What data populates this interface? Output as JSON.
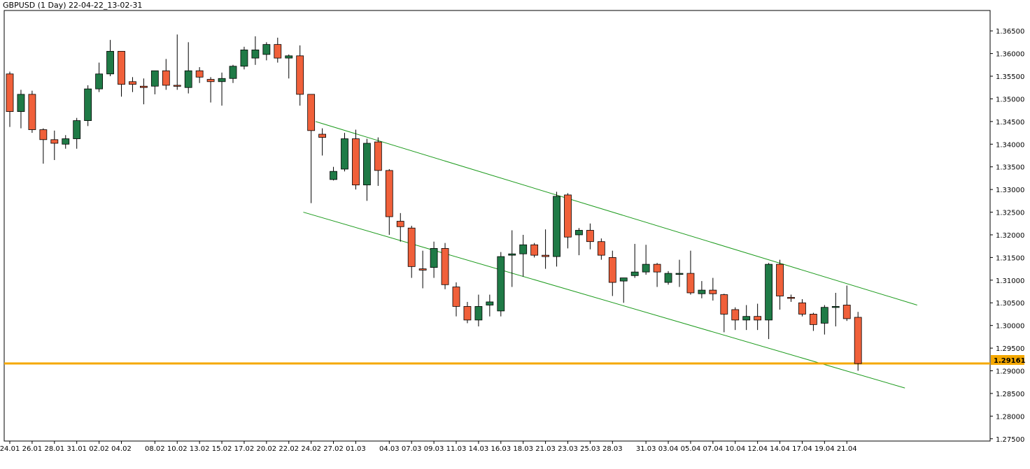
{
  "header": {
    "title": "GBPUSD (1 Day) 22-04-22_13-02-31"
  },
  "colors": {
    "bull": "#1f7a46",
    "bear": "#f0603a",
    "channel": "#1b9a1b",
    "level": "#f5a800",
    "grid": "#000000"
  },
  "chart_data": {
    "type": "candlestick",
    "title": "GBPUSD (1 Day) 22-04-22_13-02-31",
    "ylim": [
      1.2745,
      1.3695
    ],
    "y_ticks": [
      "1.36500",
      "1.36000",
      "1.35500",
      "1.35000",
      "1.34500",
      "1.34000",
      "1.33500",
      "1.33000",
      "1.32500",
      "1.32000",
      "1.31500",
      "1.31000",
      "1.30500",
      "1.30000",
      "1.29500",
      "1.29000",
      "1.28500",
      "1.28000",
      "1.27500"
    ],
    "x_ticks": [
      {
        "i": 0,
        "label": "24.01"
      },
      {
        "i": 2,
        "label": "26.01"
      },
      {
        "i": 4,
        "label": "28.01"
      },
      {
        "i": 6,
        "label": "31.01"
      },
      {
        "i": 8,
        "label": "02.02"
      },
      {
        "i": 10,
        "label": "04.02"
      },
      {
        "i": 13,
        "label": "08.02"
      },
      {
        "i": 15,
        "label": "10.02"
      },
      {
        "i": 17,
        "label": "13.02"
      },
      {
        "i": 19,
        "label": "15.02"
      },
      {
        "i": 21,
        "label": "17.02"
      },
      {
        "i": 23,
        "label": "20.02"
      },
      {
        "i": 25,
        "label": "22.02"
      },
      {
        "i": 27,
        "label": "24.02"
      },
      {
        "i": 29,
        "label": "27.02"
      },
      {
        "i": 31,
        "label": "01.03"
      },
      {
        "i": 34,
        "label": "04.03"
      },
      {
        "i": 36,
        "label": "07.03"
      },
      {
        "i": 38,
        "label": "09.03"
      },
      {
        "i": 40,
        "label": "11.03"
      },
      {
        "i": 42,
        "label": "14.03"
      },
      {
        "i": 44,
        "label": "16.03"
      },
      {
        "i": 46,
        "label": "18.03"
      },
      {
        "i": 48,
        "label": "21.03"
      },
      {
        "i": 50,
        "label": "23.03"
      },
      {
        "i": 52,
        "label": "25.03"
      },
      {
        "i": 54,
        "label": "28.03"
      },
      {
        "i": 57,
        "label": "31.03"
      },
      {
        "i": 59,
        "label": "03.04"
      },
      {
        "i": 61,
        "label": "05.04"
      },
      {
        "i": 63,
        "label": "07.04"
      },
      {
        "i": 65,
        "label": "10.04"
      },
      {
        "i": 67,
        "label": "12.04"
      },
      {
        "i": 69,
        "label": "14.04"
      },
      {
        "i": 71,
        "label": "17.04"
      },
      {
        "i": 73,
        "label": "19.04"
      },
      {
        "i": 75,
        "label": "21.04"
      }
    ],
    "candles": [
      {
        "o": 1.3555,
        "h": 1.356,
        "l": 1.3438,
        "c": 1.3472
      },
      {
        "o": 1.3472,
        "h": 1.352,
        "l": 1.3435,
        "c": 1.351
      },
      {
        "o": 1.351,
        "h": 1.3518,
        "l": 1.3425,
        "c": 1.3432
      },
      {
        "o": 1.3432,
        "h": 1.3435,
        "l": 1.3357,
        "c": 1.341
      },
      {
        "o": 1.341,
        "h": 1.343,
        "l": 1.3365,
        "c": 1.3402
      },
      {
        "o": 1.34,
        "h": 1.342,
        "l": 1.339,
        "c": 1.3412
      },
      {
        "o": 1.3412,
        "h": 1.3458,
        "l": 1.339,
        "c": 1.3452
      },
      {
        "o": 1.3452,
        "h": 1.353,
        "l": 1.344,
        "c": 1.3522
      },
      {
        "o": 1.3522,
        "h": 1.358,
        "l": 1.3515,
        "c": 1.3555
      },
      {
        "o": 1.3555,
        "h": 1.363,
        "l": 1.355,
        "c": 1.3605
      },
      {
        "o": 1.3605,
        "h": 1.3605,
        "l": 1.3505,
        "c": 1.3532
      },
      {
        "o": 1.3538,
        "h": 1.3548,
        "l": 1.3515,
        "c": 1.3532
      },
      {
        "o": 1.3528,
        "h": 1.3545,
        "l": 1.3488,
        "c": 1.3525
      },
      {
        "o": 1.3528,
        "h": 1.3562,
        "l": 1.351,
        "c": 1.3562
      },
      {
        "o": 1.3562,
        "h": 1.3588,
        "l": 1.352,
        "c": 1.353
      },
      {
        "o": 1.353,
        "h": 1.3642,
        "l": 1.352,
        "c": 1.3528
      },
      {
        "o": 1.3525,
        "h": 1.3625,
        "l": 1.3512,
        "c": 1.3562
      },
      {
        "o": 1.3562,
        "h": 1.357,
        "l": 1.3535,
        "c": 1.3548
      },
      {
        "o": 1.3543,
        "h": 1.3548,
        "l": 1.3492,
        "c": 1.3538
      },
      {
        "o": 1.3538,
        "h": 1.3558,
        "l": 1.3485,
        "c": 1.3545
      },
      {
        "o": 1.3545,
        "h": 1.3575,
        "l": 1.3535,
        "c": 1.3572
      },
      {
        "o": 1.3572,
        "h": 1.3615,
        "l": 1.3565,
        "c": 1.3608
      },
      {
        "o": 1.359,
        "h": 1.3638,
        "l": 1.3575,
        "c": 1.3608
      },
      {
        "o": 1.3598,
        "h": 1.3625,
        "l": 1.3585,
        "c": 1.362
      },
      {
        "o": 1.362,
        "h": 1.3635,
        "l": 1.358,
        "c": 1.359
      },
      {
        "o": 1.359,
        "h": 1.3598,
        "l": 1.3545,
        "c": 1.3595
      },
      {
        "o": 1.3595,
        "h": 1.3618,
        "l": 1.3485,
        "c": 1.351
      },
      {
        "o": 1.351,
        "h": 1.351,
        "l": 1.327,
        "c": 1.343
      },
      {
        "o": 1.3422,
        "h": 1.3435,
        "l": 1.3375,
        "c": 1.3415
      },
      {
        "o": 1.3322,
        "h": 1.335,
        "l": 1.332,
        "c": 1.334
      },
      {
        "o": 1.3345,
        "h": 1.3425,
        "l": 1.334,
        "c": 1.3412
      },
      {
        "o": 1.3412,
        "h": 1.3432,
        "l": 1.33,
        "c": 1.331
      },
      {
        "o": 1.331,
        "h": 1.3412,
        "l": 1.3275,
        "c": 1.3402
      },
      {
        "o": 1.3405,
        "h": 1.3415,
        "l": 1.3308,
        "c": 1.3342
      },
      {
        "o": 1.3342,
        "h": 1.3345,
        "l": 1.32,
        "c": 1.324
      },
      {
        "o": 1.323,
        "h": 1.3248,
        "l": 1.3185,
        "c": 1.3218
      },
      {
        "o": 1.3215,
        "h": 1.322,
        "l": 1.3105,
        "c": 1.313
      },
      {
        "o": 1.3125,
        "h": 1.3165,
        "l": 1.3082,
        "c": 1.3122
      },
      {
        "o": 1.3128,
        "h": 1.3185,
        "l": 1.3105,
        "c": 1.317
      },
      {
        "o": 1.317,
        "h": 1.3182,
        "l": 1.308,
        "c": 1.309
      },
      {
        "o": 1.3085,
        "h": 1.3095,
        "l": 1.302,
        "c": 1.3042
      },
      {
        "o": 1.3042,
        "h": 1.3052,
        "l": 1.3005,
        "c": 1.3012
      },
      {
        "o": 1.3012,
        "h": 1.3068,
        "l": 1.2998,
        "c": 1.3042
      },
      {
        "o": 1.3045,
        "h": 1.3068,
        "l": 1.302,
        "c": 1.3052
      },
      {
        "o": 1.3032,
        "h": 1.3162,
        "l": 1.302,
        "c": 1.3152
      },
      {
        "o": 1.3155,
        "h": 1.321,
        "l": 1.3085,
        "c": 1.3158
      },
      {
        "o": 1.3158,
        "h": 1.32,
        "l": 1.3108,
        "c": 1.3178
      },
      {
        "o": 1.3178,
        "h": 1.3182,
        "l": 1.315,
        "c": 1.3155
      },
      {
        "o": 1.3155,
        "h": 1.3212,
        "l": 1.3125,
        "c": 1.3152
      },
      {
        "o": 1.3152,
        "h": 1.3295,
        "l": 1.313,
        "c": 1.3285
      },
      {
        "o": 1.3288,
        "h": 1.3292,
        "l": 1.317,
        "c": 1.3195
      },
      {
        "o": 1.32,
        "h": 1.3215,
        "l": 1.3155,
        "c": 1.321
      },
      {
        "o": 1.321,
        "h": 1.3225,
        "l": 1.3168,
        "c": 1.3185
      },
      {
        "o": 1.3185,
        "h": 1.3192,
        "l": 1.3145,
        "c": 1.3155
      },
      {
        "o": 1.315,
        "h": 1.3165,
        "l": 1.3065,
        "c": 1.3095
      },
      {
        "o": 1.3098,
        "h": 1.3105,
        "l": 1.305,
        "c": 1.3105
      },
      {
        "o": 1.311,
        "h": 1.318,
        "l": 1.3105,
        "c": 1.3118
      },
      {
        "o": 1.3118,
        "h": 1.3178,
        "l": 1.3112,
        "c": 1.3135
      },
      {
        "o": 1.3135,
        "h": 1.3138,
        "l": 1.3085,
        "c": 1.3118
      },
      {
        "o": 1.3095,
        "h": 1.312,
        "l": 1.309,
        "c": 1.3115
      },
      {
        "o": 1.3115,
        "h": 1.3145,
        "l": 1.3085,
        "c": 1.3115
      },
      {
        "o": 1.3115,
        "h": 1.3165,
        "l": 1.3068,
        "c": 1.3072
      },
      {
        "o": 1.307,
        "h": 1.3098,
        "l": 1.306,
        "c": 1.3078
      },
      {
        "o": 1.3078,
        "h": 1.3105,
        "l": 1.3055,
        "c": 1.307
      },
      {
        "o": 1.3068,
        "h": 1.307,
        "l": 1.2985,
        "c": 1.3025
      },
      {
        "o": 1.3035,
        "h": 1.304,
        "l": 1.299,
        "c": 1.3012
      },
      {
        "o": 1.3012,
        "h": 1.3045,
        "l": 1.299,
        "c": 1.302
      },
      {
        "o": 1.302,
        "h": 1.3048,
        "l": 1.299,
        "c": 1.3012
      },
      {
        "o": 1.3012,
        "h": 1.3138,
        "l": 1.297,
        "c": 1.3135
      },
      {
        "o": 1.3135,
        "h": 1.3145,
        "l": 1.3035,
        "c": 1.3065
      },
      {
        "o": 1.3062,
        "h": 1.3068,
        "l": 1.3052,
        "c": 1.306
      },
      {
        "o": 1.305,
        "h": 1.3058,
        "l": 1.302,
        "c": 1.3025
      },
      {
        "o": 1.3025,
        "h": 1.3028,
        "l": 1.2988,
        "c": 1.3002
      },
      {
        "o": 1.3005,
        "h": 1.3045,
        "l": 1.298,
        "c": 1.304
      },
      {
        "o": 1.3042,
        "h": 1.3072,
        "l": 1.2998,
        "c": 1.3042
      },
      {
        "o": 1.3045,
        "h": 1.3088,
        "l": 1.301,
        "c": 1.3015
      },
      {
        "o": 1.3018,
        "h": 1.303,
        "l": 1.29,
        "c": 1.2916
      }
    ],
    "channel_upper": [
      {
        "i": 27.4,
        "y": 1.345
      },
      {
        "i": 81.3,
        "y": 1.3045
      }
    ],
    "channel_lower": [
      {
        "i": 26.3,
        "y": 1.325
      },
      {
        "i": 80.2,
        "y": 1.2862
      }
    ],
    "current_price": 1.29161,
    "current_price_label": "1.29161"
  }
}
